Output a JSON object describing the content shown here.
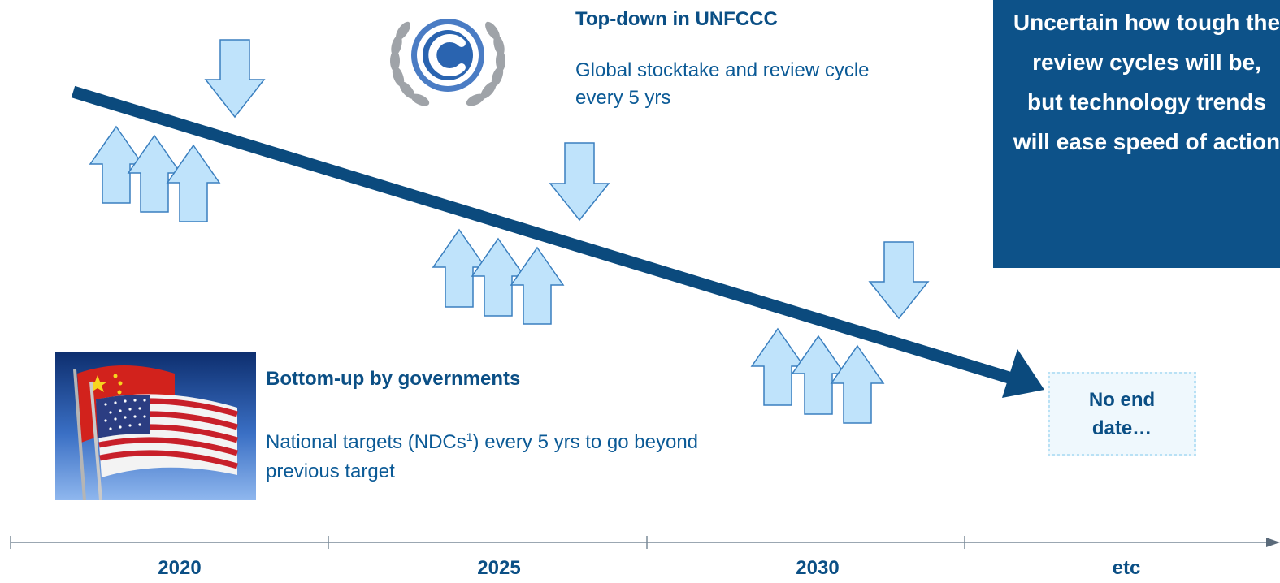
{
  "top_down": {
    "title": "Top-down in UNFCCC",
    "description": "Global stocktake and review cycle every 5 yrs",
    "emblem": "un-climate-logo"
  },
  "bottom_up": {
    "title": "Bottom-up by governments",
    "description_before": "National targets (NDCs",
    "footnote": "1",
    "description_after": ") every 5 yrs to go beyond previous target",
    "image": "china-and-usa-flags"
  },
  "callout": {
    "text": "Uncertain how tough the review cycles will be, but technology trends will ease speed of action"
  },
  "end_box": {
    "text": "No end date…"
  },
  "timeline": {
    "labels": [
      "2020",
      "2025",
      "2030",
      "etc"
    ]
  },
  "colors": {
    "trend_line": "#0b4a7d",
    "arrow_fill": "#bfe3fb",
    "arrow_stroke": "#3a7fbf",
    "callout_bg": "#0d5289",
    "text_dark": "#0b4f85",
    "text_blue": "#0b5a96"
  }
}
